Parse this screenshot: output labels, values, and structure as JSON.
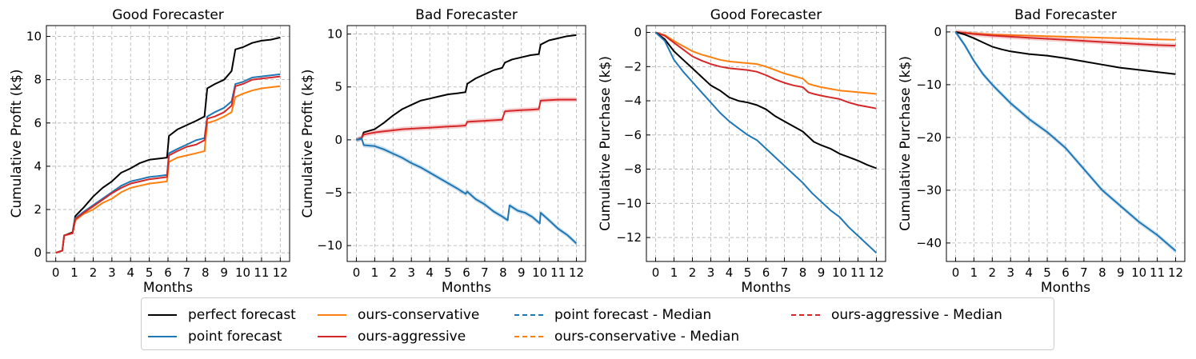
{
  "chart_data": [
    {
      "type": "line",
      "title": "Good Forecaster",
      "xlabel": "Months",
      "ylabel": "Cumulative Profit (k$)",
      "xlim": [
        0,
        12
      ],
      "ylim": [
        -0.4,
        10.5
      ],
      "xticks": [
        0,
        1,
        2,
        3,
        4,
        5,
        6,
        7,
        8,
        9,
        10,
        11,
        12
      ],
      "yticks": [
        0,
        2,
        4,
        6,
        8,
        10
      ],
      "grid": true,
      "series": [
        {
          "name": "perfect forecast",
          "color": "#000000",
          "x": [
            0,
            0.35,
            0.45,
            0.9,
            1.05,
            1.5,
            2,
            2.5,
            3,
            3.5,
            4,
            4.5,
            5,
            5.5,
            5.95,
            6.05,
            6.5,
            7,
            7.5,
            7.95,
            8.1,
            8.5,
            9,
            9.4,
            9.6,
            10,
            10.5,
            11,
            11.5,
            12
          ],
          "y": [
            0,
            0.1,
            0.8,
            0.95,
            1.7,
            2.1,
            2.6,
            3.0,
            3.3,
            3.7,
            3.9,
            4.15,
            4.3,
            4.35,
            4.4,
            5.4,
            5.7,
            5.9,
            6.1,
            6.3,
            7.6,
            7.8,
            8.0,
            8.4,
            9.4,
            9.5,
            9.7,
            9.8,
            9.85,
            9.95
          ]
        },
        {
          "name": "point forecast",
          "color": "#1f77b4",
          "x": [
            0,
            0.35,
            0.45,
            0.9,
            1.05,
            1.5,
            2,
            2.5,
            3,
            3.5,
            4,
            4.5,
            5,
            5.5,
            5.95,
            6.05,
            6.5,
            7,
            7.5,
            7.95,
            8.1,
            8.5,
            9,
            9.4,
            9.6,
            10,
            10.5,
            11,
            11.5,
            12
          ],
          "y": [
            0,
            0.1,
            0.8,
            0.9,
            1.6,
            1.9,
            2.2,
            2.5,
            2.8,
            3.1,
            3.3,
            3.4,
            3.5,
            3.55,
            3.6,
            4.6,
            4.8,
            5.0,
            5.2,
            5.3,
            6.3,
            6.5,
            6.7,
            7.0,
            7.8,
            7.9,
            8.1,
            8.15,
            8.2,
            8.25
          ]
        },
        {
          "name": "ours-conservative",
          "color": "#ff7f0e",
          "x": [
            0,
            0.35,
            0.45,
            0.9,
            1.05,
            1.5,
            2,
            2.5,
            3,
            3.5,
            4,
            4.5,
            5,
            5.5,
            5.95,
            6.05,
            6.5,
            7,
            7.5,
            7.95,
            8.1,
            8.5,
            9,
            9.4,
            9.6,
            10,
            10.5,
            11,
            11.5,
            12
          ],
          "y": [
            0,
            0.1,
            0.8,
            0.9,
            1.5,
            1.8,
            2.0,
            2.3,
            2.5,
            2.8,
            3.0,
            3.1,
            3.2,
            3.25,
            3.3,
            4.2,
            4.4,
            4.5,
            4.6,
            4.7,
            6.0,
            6.1,
            6.3,
            6.5,
            7.2,
            7.35,
            7.5,
            7.6,
            7.65,
            7.7
          ]
        },
        {
          "name": "ours-aggressive",
          "color": "#d62728",
          "x": [
            0,
            0.35,
            0.45,
            0.9,
            1.05,
            1.5,
            2,
            2.5,
            3,
            3.5,
            4,
            4.5,
            5,
            5.5,
            5.95,
            6.05,
            6.5,
            7,
            7.5,
            7.95,
            8.1,
            8.5,
            9,
            9.4,
            9.6,
            10,
            10.5,
            11,
            11.5,
            12
          ],
          "y": [
            0,
            0.1,
            0.8,
            0.9,
            1.55,
            1.85,
            2.15,
            2.45,
            2.75,
            3.0,
            3.2,
            3.3,
            3.4,
            3.45,
            3.5,
            4.5,
            4.7,
            4.9,
            5.0,
            5.2,
            6.2,
            6.3,
            6.5,
            6.8,
            7.7,
            7.8,
            8.0,
            8.05,
            8.1,
            8.15
          ]
        }
      ]
    },
    {
      "type": "line",
      "title": "Bad Forecaster",
      "xlabel": "Months",
      "ylabel": "Cumulative Profit (k$)",
      "xlim": [
        0,
        12
      ],
      "ylim": [
        -11.5,
        10.8
      ],
      "xticks": [
        0,
        1,
        2,
        3,
        4,
        5,
        6,
        7,
        8,
        9,
        10,
        11,
        12
      ],
      "yticks": [
        -10,
        -5,
        0,
        5,
        10
      ],
      "grid": true,
      "series": [
        {
          "name": "perfect forecast",
          "color": "#000000",
          "x": [
            0,
            0.3,
            0.4,
            1,
            1.5,
            2,
            2.5,
            3,
            3.5,
            4,
            4.5,
            5,
            5.5,
            5.95,
            6.05,
            6.5,
            7,
            7.5,
            7.95,
            8.1,
            8.5,
            9,
            9.5,
            9.95,
            10.05,
            10.5,
            11,
            11.5,
            12
          ],
          "y": [
            0,
            0.2,
            0.7,
            1.0,
            1.6,
            2.3,
            2.9,
            3.3,
            3.7,
            3.9,
            4.1,
            4.3,
            4.4,
            4.5,
            5.3,
            5.8,
            6.2,
            6.6,
            6.8,
            7.3,
            7.6,
            7.8,
            8.0,
            8.1,
            9.0,
            9.4,
            9.6,
            9.8,
            9.9
          ]
        },
        {
          "name": "ours-aggressive",
          "color": "#d62728",
          "x": [
            0,
            0.3,
            0.4,
            1,
            1.5,
            2,
            2.5,
            3,
            3.5,
            4,
            4.5,
            5,
            5.5,
            5.95,
            6.05,
            6.5,
            7,
            7.5,
            7.95,
            8.1,
            8.5,
            9,
            9.5,
            9.95,
            10.05,
            10.5,
            11,
            11.5,
            12
          ],
          "y": [
            0,
            0.2,
            0.5,
            0.7,
            0.8,
            0.9,
            1.0,
            1.05,
            1.1,
            1.15,
            1.2,
            1.25,
            1.3,
            1.35,
            1.7,
            1.75,
            1.8,
            1.85,
            1.9,
            2.7,
            2.75,
            2.8,
            2.85,
            2.9,
            3.7,
            3.75,
            3.8,
            3.8,
            3.8
          ]
        },
        {
          "name": "point forecast",
          "color": "#1f77b4",
          "x": [
            0,
            0.3,
            0.4,
            1,
            1.5,
            2,
            2.5,
            3,
            3.5,
            4,
            4.5,
            5,
            5.5,
            5.95,
            6.05,
            6.5,
            7,
            7.5,
            8,
            8.25,
            8.35,
            8.8,
            9.2,
            9.6,
            10,
            10.05,
            10.5,
            11,
            11.5,
            12
          ],
          "y": [
            0,
            0.1,
            -0.5,
            -0.6,
            -0.9,
            -1.3,
            -1.7,
            -2.2,
            -2.6,
            -3.1,
            -3.6,
            -4.1,
            -4.6,
            -5.1,
            -4.9,
            -5.6,
            -6.1,
            -6.8,
            -7.3,
            -7.6,
            -6.2,
            -6.7,
            -6.9,
            -7.3,
            -7.9,
            -6.9,
            -7.6,
            -8.4,
            -9.0,
            -9.8
          ]
        }
      ]
    },
    {
      "type": "line",
      "title": "Good Forecaster",
      "xlabel": "Months",
      "ylabel": "Cumulative Purchase (k$)",
      "xlim": [
        0,
        12
      ],
      "ylim": [
        -13.4,
        0.4
      ],
      "xticks": [
        0,
        1,
        2,
        3,
        4,
        5,
        6,
        7,
        8,
        9,
        10,
        11,
        12
      ],
      "yticks": [
        -12,
        -10,
        -8,
        -6,
        -4,
        -2,
        0
      ],
      "grid": true,
      "series": [
        {
          "name": "ours-conservative",
          "color": "#ff7f0e",
          "x": [
            0,
            0.5,
            1,
            1.5,
            2,
            2.5,
            3,
            3.5,
            4,
            4.5,
            5,
            5.5,
            6,
            6.5,
            7,
            7.5,
            8,
            8.3,
            8.6,
            9,
            9.5,
            10,
            10.5,
            11,
            11.5,
            12
          ],
          "y": [
            0,
            -0.15,
            -0.5,
            -0.8,
            -1.1,
            -1.3,
            -1.45,
            -1.6,
            -1.7,
            -1.75,
            -1.8,
            -1.85,
            -2.0,
            -2.2,
            -2.4,
            -2.55,
            -2.7,
            -3.0,
            -3.1,
            -3.2,
            -3.3,
            -3.4,
            -3.45,
            -3.5,
            -3.55,
            -3.6
          ]
        },
        {
          "name": "ours-aggressive",
          "color": "#d62728",
          "x": [
            0,
            0.5,
            1,
            1.5,
            2,
            2.5,
            3,
            3.5,
            4,
            4.5,
            5,
            5.5,
            6,
            6.5,
            7,
            7.5,
            8,
            8.3,
            8.6,
            9,
            9.5,
            10,
            10.5,
            11,
            11.5,
            12
          ],
          "y": [
            0,
            -0.2,
            -0.6,
            -1.0,
            -1.4,
            -1.65,
            -1.85,
            -2.0,
            -2.1,
            -2.15,
            -2.2,
            -2.3,
            -2.5,
            -2.75,
            -2.95,
            -3.1,
            -3.2,
            -3.5,
            -3.6,
            -3.7,
            -3.8,
            -3.9,
            -4.1,
            -4.25,
            -4.35,
            -4.45
          ]
        },
        {
          "name": "perfect forecast",
          "color": "#000000",
          "x": [
            0,
            0.5,
            1,
            1.5,
            2,
            2.5,
            3,
            3.5,
            4,
            4.5,
            5,
            5.5,
            6,
            6.5,
            7,
            7.5,
            8,
            8.3,
            8.6,
            9,
            9.5,
            10,
            10.5,
            11,
            11.5,
            12
          ],
          "y": [
            0,
            -0.4,
            -1.1,
            -1.6,
            -2.1,
            -2.6,
            -3.1,
            -3.4,
            -3.8,
            -4.0,
            -4.1,
            -4.25,
            -4.5,
            -4.9,
            -5.2,
            -5.5,
            -5.8,
            -6.1,
            -6.4,
            -6.6,
            -6.8,
            -7.1,
            -7.3,
            -7.5,
            -7.75,
            -7.95
          ]
        },
        {
          "name": "point forecast",
          "color": "#1f77b4",
          "x": [
            0,
            0.5,
            1,
            1.5,
            2,
            2.5,
            3,
            3.5,
            4,
            4.5,
            5,
            5.5,
            6,
            6.5,
            7,
            7.5,
            8,
            8.5,
            9,
            9.5,
            10,
            10.5,
            11,
            11.5,
            12
          ],
          "y": [
            0,
            -0.5,
            -1.6,
            -2.3,
            -2.9,
            -3.5,
            -4.1,
            -4.7,
            -5.2,
            -5.6,
            -6.0,
            -6.3,
            -6.8,
            -7.3,
            -7.8,
            -8.3,
            -8.8,
            -9.4,
            -9.9,
            -10.4,
            -10.8,
            -11.4,
            -11.9,
            -12.4,
            -12.9
          ]
        }
      ]
    },
    {
      "type": "line",
      "title": "Bad Forecaster",
      "xlabel": "Months",
      "ylabel": "Cumulative Purchase (k$)",
      "xlim": [
        0,
        12
      ],
      "ylim": [
        -43.5,
        1.2
      ],
      "xticks": [
        0,
        1,
        2,
        3,
        4,
        5,
        6,
        7,
        8,
        9,
        10,
        11,
        12
      ],
      "yticks": [
        -40,
        -30,
        -20,
        -10,
        0
      ],
      "grid": true,
      "series": [
        {
          "name": "ours-conservative",
          "color": "#ff7f0e",
          "x": [
            0,
            1,
            2,
            3,
            4,
            5,
            6,
            7,
            8,
            9,
            10,
            11,
            12
          ],
          "y": [
            0,
            -0.3,
            -0.5,
            -0.6,
            -0.7,
            -0.8,
            -0.9,
            -1.0,
            -1.1,
            -1.2,
            -1.3,
            -1.4,
            -1.5
          ]
        },
        {
          "name": "ours-aggressive",
          "color": "#d62728",
          "x": [
            0,
            1,
            2,
            3,
            4,
            5,
            6,
            7,
            8,
            9,
            10,
            11,
            12
          ],
          "y": [
            0,
            -0.4,
            -0.7,
            -0.9,
            -1.1,
            -1.3,
            -1.5,
            -1.7,
            -1.9,
            -2.1,
            -2.3,
            -2.5,
            -2.6
          ]
        },
        {
          "name": "perfect forecast",
          "color": "#000000",
          "x": [
            0,
            0.5,
            1,
            1.5,
            2,
            2.5,
            3,
            4,
            5,
            6,
            7,
            8,
            9,
            10,
            11,
            12
          ],
          "y": [
            0,
            -0.5,
            -1.2,
            -2.0,
            -2.8,
            -3.3,
            -3.7,
            -4.2,
            -4.5,
            -5.0,
            -5.6,
            -6.2,
            -6.8,
            -7.2,
            -7.6,
            -8.0
          ]
        },
        {
          "name": "point forecast",
          "color": "#1f77b4",
          "x": [
            0,
            0.5,
            1,
            1.5,
            2,
            3,
            4,
            5,
            6,
            7,
            8,
            9,
            10,
            11,
            12
          ],
          "y": [
            0,
            -2.5,
            -5.5,
            -8.0,
            -10.0,
            -13.5,
            -16.5,
            -19.0,
            -22.0,
            -26.0,
            -30.0,
            -33.0,
            -36.0,
            -38.5,
            -41.5
          ]
        }
      ]
    }
  ],
  "legend": [
    {
      "label": "perfect forecast",
      "color": "#000000",
      "style": "solid"
    },
    {
      "label": "point forecast",
      "color": "#1f77b4",
      "style": "solid"
    },
    {
      "label": "ours-conservative",
      "color": "#ff7f0e",
      "style": "solid"
    },
    {
      "label": "ours-aggressive",
      "color": "#d62728",
      "style": "solid"
    },
    {
      "label": "point forecast - Median",
      "color": "#1f77b4",
      "style": "dashed"
    },
    {
      "label": "ours-conservative - Median",
      "color": "#ff7f0e",
      "style": "dashed"
    },
    {
      "label": "ours-aggressive - Median",
      "color": "#d62728",
      "style": "dashed"
    }
  ]
}
